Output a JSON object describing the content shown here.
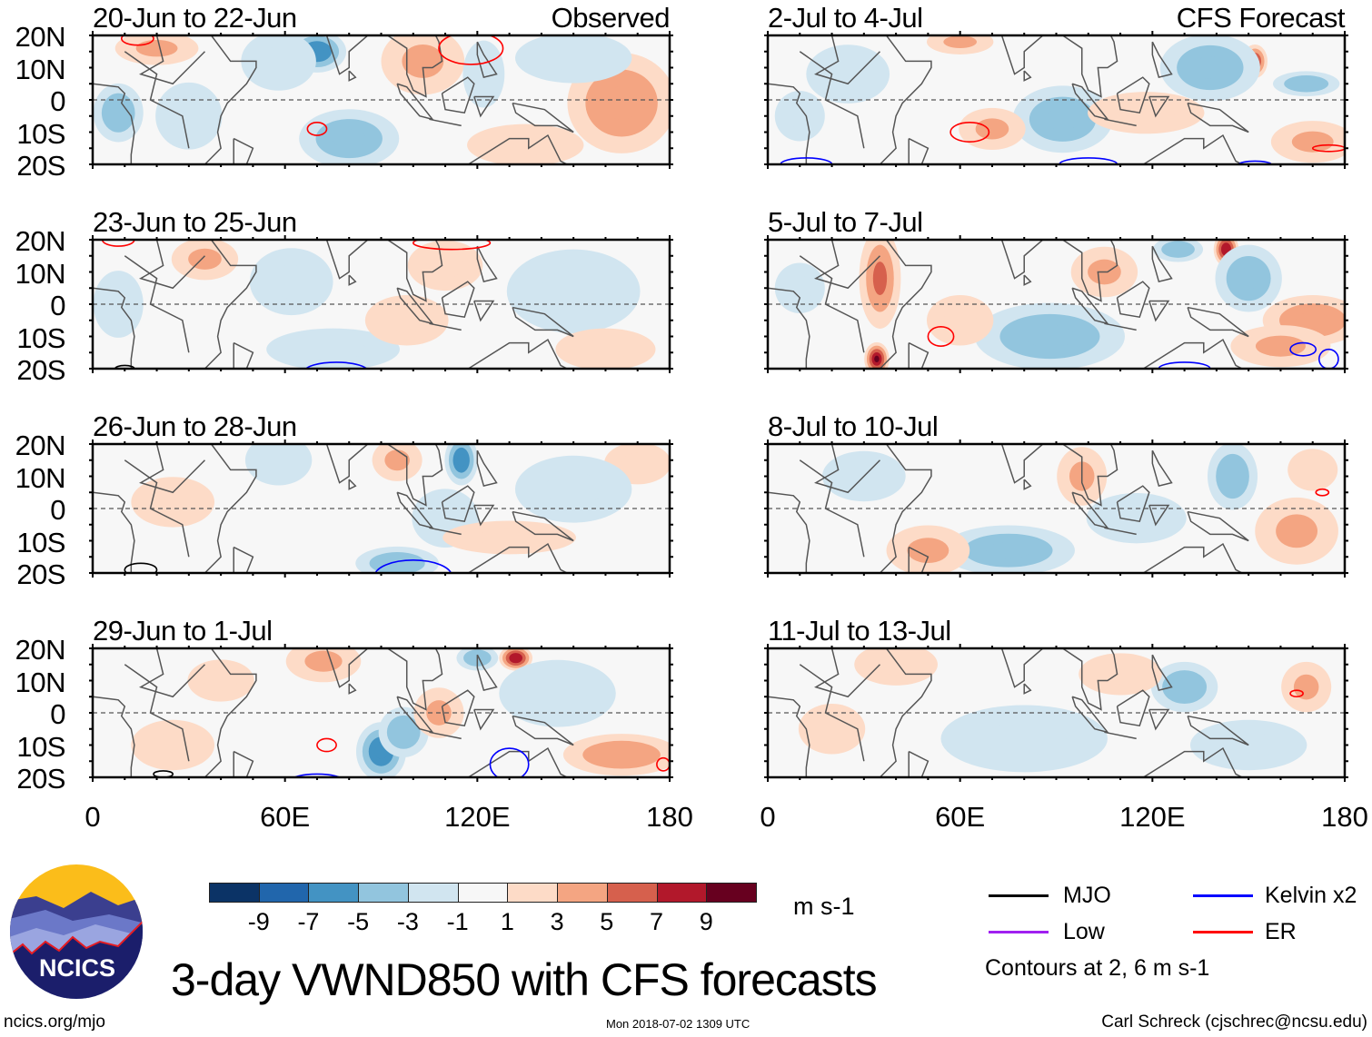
{
  "panels": [
    {
      "title": "20-Jun to 22-Jun",
      "tag": "Observed",
      "blobs": [
        [
          70,
          15,
          7,
          5,
          -6
        ],
        [
          58,
          12,
          9,
          7,
          -3
        ],
        [
          103,
          12,
          10,
          8,
          3
        ],
        [
          20,
          16,
          10,
          4,
          3
        ],
        [
          8,
          -4,
          6,
          7,
          -5
        ],
        [
          165,
          -1,
          13,
          12,
          4
        ],
        [
          150,
          13,
          14,
          6,
          -2
        ],
        [
          80,
          -12,
          12,
          7,
          -4
        ],
        [
          135,
          -14,
          14,
          5,
          2
        ],
        [
          30,
          -5,
          8,
          8,
          -2
        ],
        [
          122,
          8,
          5,
          8,
          -3
        ]
      ],
      "contours": [
        [
          70,
          -9,
          3,
          2,
          "er"
        ],
        [
          118,
          16,
          10,
          5,
          "er"
        ],
        [
          14,
          19,
          5,
          2,
          "er"
        ]
      ]
    },
    {
      "title": "23-Jun to 25-Jun",
      "tag": "",
      "blobs": [
        [
          62,
          7,
          10,
          8,
          -3
        ],
        [
          35,
          14,
          8,
          5,
          3
        ],
        [
          110,
          12,
          9,
          6,
          2
        ],
        [
          75,
          -14,
          16,
          5,
          -3
        ],
        [
          150,
          4,
          16,
          10,
          -2
        ],
        [
          8,
          0,
          6,
          8,
          -3
        ],
        [
          160,
          -14,
          12,
          5,
          2
        ],
        [
          98,
          -5,
          10,
          6,
          2
        ]
      ],
      "contours": [
        [
          76,
          -21,
          10,
          3,
          "kelvin"
        ],
        [
          112,
          19,
          12,
          2,
          "er"
        ],
        [
          8,
          20,
          5,
          2,
          "er"
        ],
        [
          10,
          -20,
          3,
          1,
          "mjo"
        ]
      ]
    },
    {
      "title": "26-Jun to 28-Jun",
      "tag": "",
      "blobs": [
        [
          115,
          15,
          4,
          6,
          -6
        ],
        [
          95,
          15,
          6,
          5,
          3
        ],
        [
          58,
          15,
          8,
          6,
          -2
        ],
        [
          110,
          -3,
          8,
          7,
          -3
        ],
        [
          95,
          -17,
          10,
          4,
          -4
        ],
        [
          170,
          14,
          8,
          5,
          2
        ],
        [
          150,
          6,
          14,
          8,
          -2
        ],
        [
          130,
          -9,
          16,
          4,
          2
        ],
        [
          25,
          2,
          10,
          6,
          2
        ]
      ],
      "contours": [
        [
          100,
          -21,
          12,
          5,
          "kelvin"
        ],
        [
          15,
          -19,
          5,
          2,
          "mjo"
        ]
      ]
    },
    {
      "title": "29-Jun to 1-Jul",
      "tag": "",
      "blobs": [
        [
          132,
          17,
          4,
          3,
          8
        ],
        [
          120,
          17,
          5,
          3,
          -4
        ],
        [
          72,
          16,
          9,
          5,
          3
        ],
        [
          90,
          -12,
          6,
          7,
          -6
        ],
        [
          97,
          -6,
          6,
          6,
          -4
        ],
        [
          108,
          0,
          6,
          6,
          3
        ],
        [
          165,
          -13,
          14,
          5,
          4
        ],
        [
          145,
          6,
          14,
          8,
          -2
        ],
        [
          25,
          -10,
          10,
          6,
          2
        ],
        [
          40,
          10,
          8,
          5,
          2
        ]
      ],
      "contours": [
        [
          73,
          -10,
          3,
          2,
          "er"
        ],
        [
          130,
          -16,
          6,
          5,
          "kelvin"
        ],
        [
          70,
          -21,
          8,
          2,
          "kelvin"
        ],
        [
          22,
          -19,
          3,
          1,
          "mjo"
        ],
        [
          178,
          -16,
          2,
          2,
          "er"
        ]
      ]
    },
    {
      "title": "2-Jul to 4-Jul",
      "tag": "CFS Forecast",
      "blobs": [
        [
          152,
          12,
          3,
          4,
          7
        ],
        [
          138,
          10,
          12,
          8,
          -4
        ],
        [
          168,
          5,
          8,
          3,
          -5
        ],
        [
          60,
          18,
          8,
          3,
          3
        ],
        [
          92,
          -6,
          12,
          8,
          -4
        ],
        [
          70,
          -9,
          8,
          5,
          3
        ],
        [
          170,
          -13,
          10,
          5,
          3
        ],
        [
          118,
          -4,
          14,
          5,
          2
        ],
        [
          25,
          8,
          10,
          7,
          -2
        ],
        [
          10,
          -5,
          6,
          6,
          -2
        ]
      ],
      "contours": [
        [
          63,
          -10,
          6,
          3,
          "er"
        ],
        [
          12,
          -20,
          8,
          2,
          "kelvin"
        ],
        [
          100,
          -20,
          9,
          2,
          "kelvin"
        ],
        [
          152,
          -20,
          5,
          1,
          "kelvin"
        ],
        [
          175,
          -15,
          5,
          1,
          "er"
        ]
      ]
    },
    {
      "title": "5-Jul to 7-Jul",
      "tag": "",
      "blobs": [
        [
          143,
          17,
          3,
          4,
          8
        ],
        [
          128,
          17,
          6,
          3,
          -5
        ],
        [
          35,
          8,
          5,
          12,
          5
        ],
        [
          34,
          -17,
          3,
          4,
          9
        ],
        [
          88,
          -10,
          18,
          8,
          -5
        ],
        [
          150,
          8,
          8,
          8,
          -4
        ],
        [
          105,
          10,
          8,
          6,
          3
        ],
        [
          170,
          -5,
          12,
          6,
          4
        ],
        [
          160,
          -13,
          12,
          5,
          3
        ],
        [
          10,
          5,
          6,
          6,
          -3
        ],
        [
          60,
          -5,
          8,
          6,
          2
        ]
      ],
      "contours": [
        [
          54,
          -10,
          4,
          3,
          "er"
        ],
        [
          167,
          -14,
          4,
          2,
          "kelvin"
        ],
        [
          130,
          -20,
          8,
          2,
          "kelvin"
        ],
        [
          175,
          -17,
          3,
          3,
          "kelvin"
        ]
      ]
    },
    {
      "title": "8-Jul to 10-Jul",
      "tag": "",
      "blobs": [
        [
          75,
          -13,
          16,
          6,
          -5
        ],
        [
          98,
          10,
          6,
          7,
          3
        ],
        [
          145,
          10,
          6,
          8,
          -4
        ],
        [
          165,
          -7,
          10,
          8,
          3
        ],
        [
          50,
          -13,
          10,
          6,
          3
        ],
        [
          30,
          10,
          10,
          6,
          -2
        ],
        [
          115,
          -3,
          12,
          6,
          -2
        ],
        [
          170,
          12,
          6,
          5,
          2
        ]
      ],
      "contours": [
        [
          173,
          5,
          2,
          1,
          "er"
        ]
      ]
    },
    {
      "title": "11-Jul to 13-Jul",
      "tag": "",
      "blobs": [
        [
          130,
          8,
          8,
          6,
          -4
        ],
        [
          168,
          8,
          6,
          6,
          3
        ],
        [
          80,
          -8,
          20,
          8,
          -3
        ],
        [
          40,
          15,
          10,
          5,
          2
        ],
        [
          110,
          12,
          10,
          5,
          2
        ],
        [
          150,
          -10,
          14,
          6,
          -2
        ],
        [
          20,
          -5,
          8,
          6,
          2
        ]
      ],
      "contours": [
        [
          165,
          6,
          2,
          1,
          "er"
        ]
      ]
    }
  ],
  "y_labels": [
    "20N",
    "10N",
    "0",
    "10S",
    "20S"
  ],
  "x_labels": [
    "0",
    "60E",
    "120E",
    "180"
  ],
  "colorbar": {
    "colors": [
      "#0b3366",
      "#2166ac",
      "#4393c3",
      "#92c5de",
      "#d1e5f0",
      "#f7f7f7",
      "#fddbc7",
      "#f4a582",
      "#d6604d",
      "#b2182b",
      "#67001f"
    ],
    "labels": [
      "-9",
      "-7",
      "-5",
      "-3",
      "-1",
      "1",
      "3",
      "5",
      "7",
      "9"
    ],
    "units": "m s-1"
  },
  "legend": {
    "items": [
      {
        "label": "MJO",
        "color": "#000000"
      },
      {
        "label": "Kelvin x2",
        "color": "#0000ff"
      },
      {
        "label": "Low",
        "color": "#a020f0"
      },
      {
        "label": "ER",
        "color": "#ff0000"
      }
    ],
    "note": "Contours at 2, 6 m s-1"
  },
  "title": "3-day VWND850 with CFS forecasts",
  "logo_text": "NCICS",
  "footer": {
    "left": "ncics.org/mjo",
    "center": "Mon 2018-07-02 1309 UTC",
    "right": "Carl Schreck (cjschrec@ncsu.edu)"
  }
}
